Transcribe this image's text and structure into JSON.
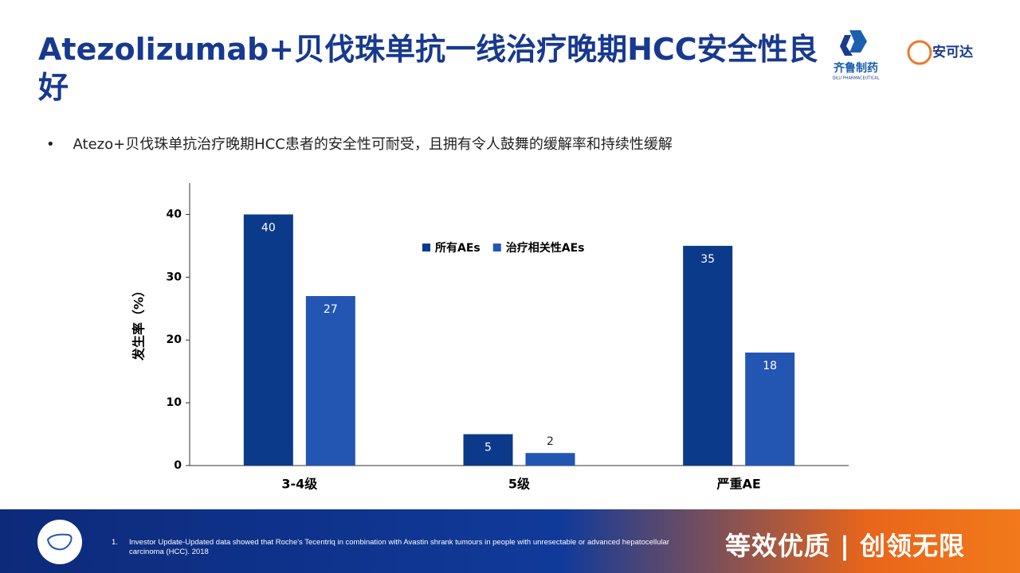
{
  "slide": {
    "title": "Atezolizumab+贝伐珠单抗一线治疗晚期HCC安全性良好",
    "bullet": "Atezo+贝伐珠单抗治疗晚期HCC患者的安全性可耐受，且拥有令人鼓舞的缓解率和持续性缓解",
    "logo_left": "齐鲁制药",
    "logo_left_sub": "QILU PHARMACEUTICAL",
    "logo_right": "安可达",
    "footnote_number": "1.",
    "footnote": "Investor Update-Updated data showed that Roche's Tecentriq in combination with Avastin shrank tumours in people with unresectable or advanced hepatocellular carcinoma (HCC). 2018",
    "slogan": "等效优质 | 创领无限"
  },
  "chart_data": {
    "type": "bar",
    "y_label": "发生率（%）",
    "categories": [
      "3-4级",
      "5级",
      "严重AE"
    ],
    "series": [
      {
        "name": "所有AEs",
        "color": "#0c3a8a",
        "values": [
          40,
          5,
          35
        ]
      },
      {
        "name": "治疗相关性AEs",
        "color": "#2356b3",
        "values": [
          27,
          2,
          18
        ]
      }
    ],
    "ylim": [
      0,
      45
    ],
    "yticks": [
      0,
      10,
      20,
      30,
      40
    ],
    "grid": false,
    "legend": "top"
  }
}
